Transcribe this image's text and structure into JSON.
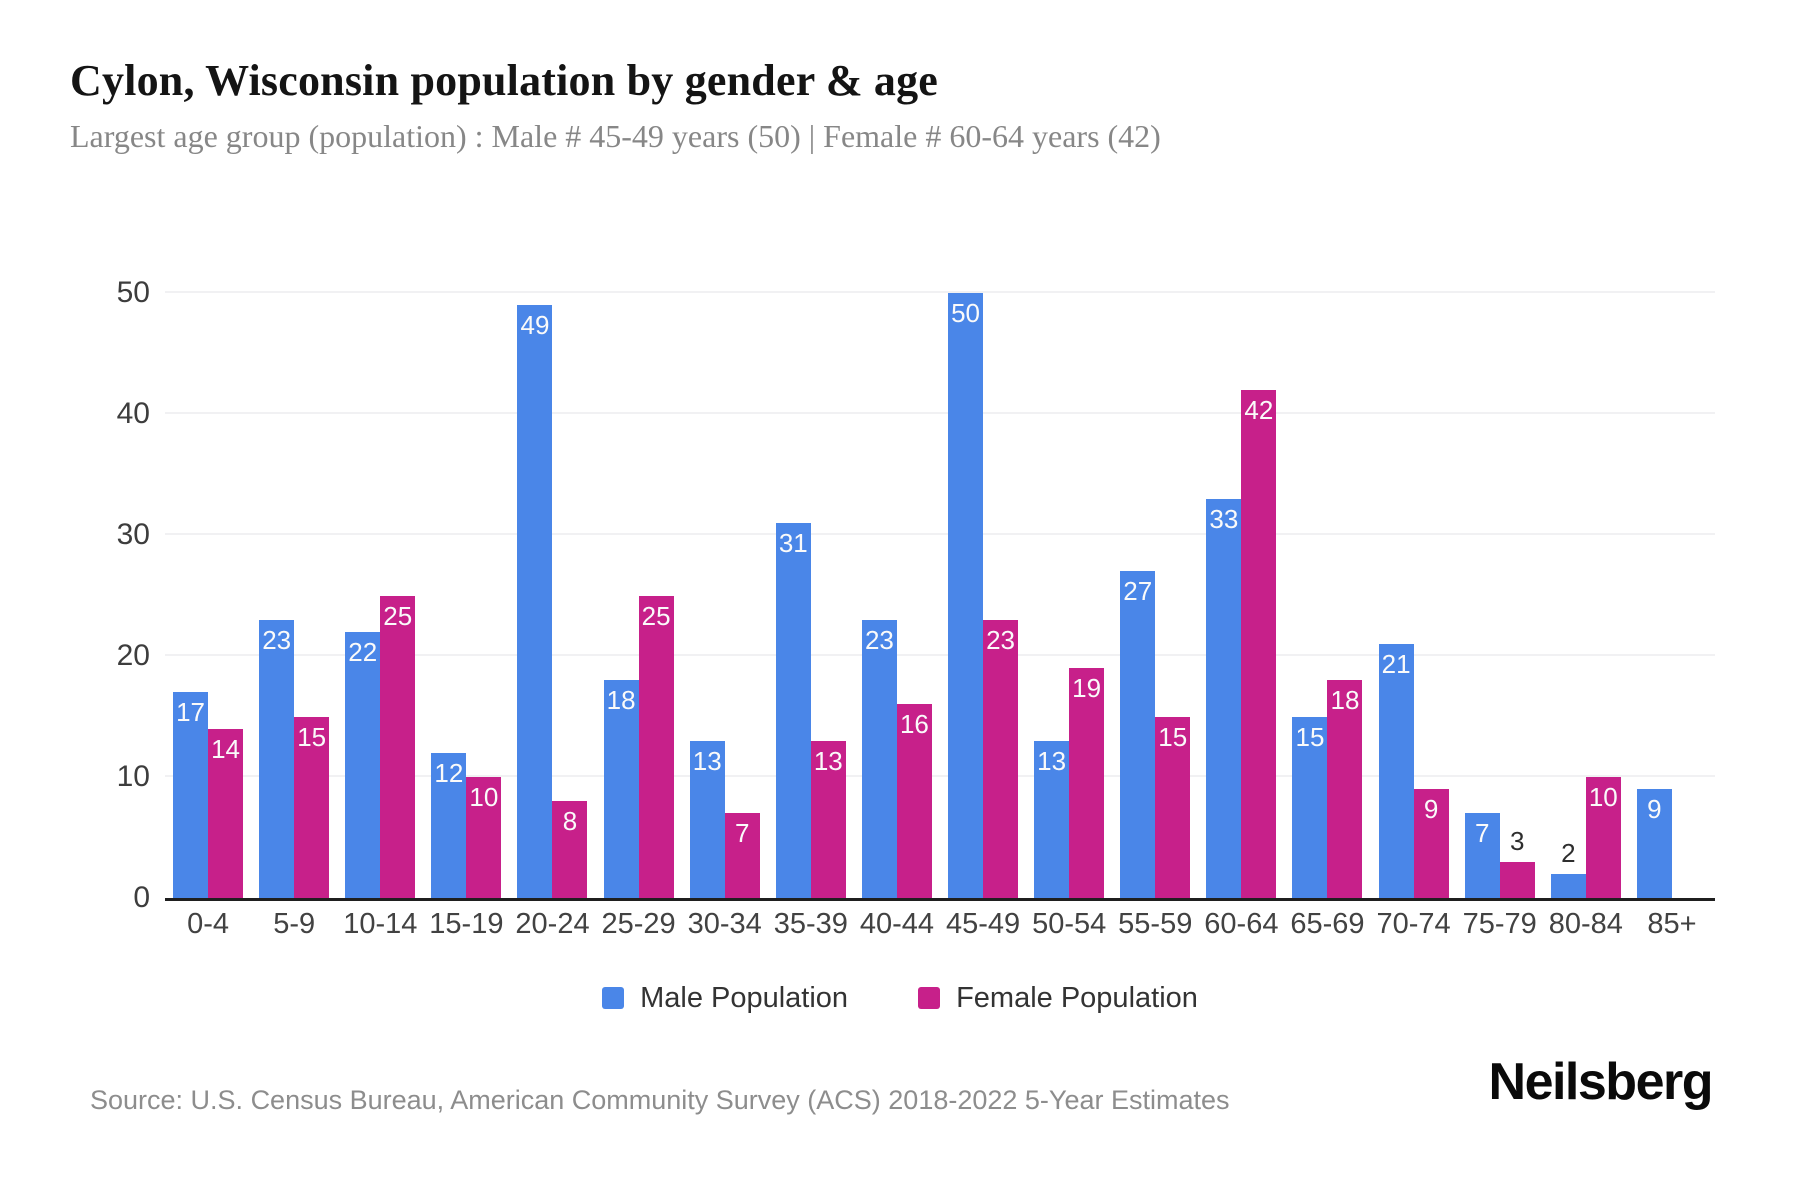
{
  "header": {
    "title": "Cylon, Wisconsin population by gender & age",
    "subtitle": "Largest age group (population) : Male # 45-49 years (50) | Female # 60-64 years (42)"
  },
  "chart_data": {
    "type": "bar",
    "title": "Cylon, Wisconsin population by gender & age",
    "categories": [
      "0-4",
      "5-9",
      "10-14",
      "15-19",
      "20-24",
      "25-29",
      "30-34",
      "35-39",
      "40-44",
      "45-49",
      "50-54",
      "55-59",
      "60-64",
      "65-69",
      "70-74",
      "75-79",
      "80-84",
      "85+"
    ],
    "series": [
      {
        "name": "Male Population",
        "color": "#4a86e8",
        "values": [
          17,
          23,
          22,
          12,
          49,
          18,
          13,
          31,
          23,
          50,
          13,
          27,
          33,
          15,
          21,
          7,
          2,
          9
        ]
      },
      {
        "name": "Female Population",
        "color": "#c7208a",
        "values": [
          14,
          15,
          25,
          10,
          8,
          25,
          7,
          13,
          16,
          23,
          19,
          15,
          42,
          18,
          9,
          3,
          10,
          0
        ]
      }
    ],
    "xlabel": "",
    "ylabel": "",
    "ylim": [
      0,
      50
    ],
    "yticks": [
      0,
      10,
      20,
      30,
      40,
      50
    ],
    "grid": "horizontal-light",
    "legend_position": "bottom",
    "value_label_rule": "white label inside bar top; dark label above bar when value < 4; zero values draw no bar"
  },
  "legend": {
    "items": [
      {
        "label": "Male Population",
        "color": "#4a86e8"
      },
      {
        "label": "Female Population",
        "color": "#c7208a"
      }
    ]
  },
  "footer": {
    "source": "Source: U.S. Census Bureau, American Community Survey (ACS) 2018-2022 5-Year Estimates",
    "brand": "Neilsberg"
  },
  "colors": {
    "male": "#4a86e8",
    "female": "#c7208a",
    "gridline": "#f1f1f3",
    "axis_line": "#1f1f1f",
    "title_text": "#141414",
    "subtitle_text": "#878787"
  }
}
